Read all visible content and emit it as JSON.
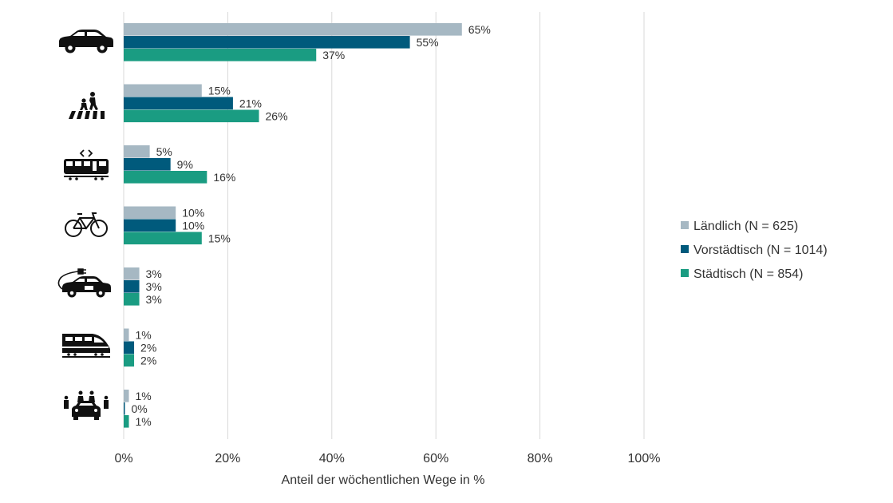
{
  "chart_data": {
    "type": "bar",
    "orientation": "horizontal",
    "categories": [
      "car-icon",
      "pedestrian-icon",
      "tram-icon",
      "bicycle-icon",
      "electric-car-icon",
      "train-icon",
      "carpool-icon"
    ],
    "series": [
      {
        "name": "Ländlich (N = 625)",
        "color": "#a6b8c3",
        "values": [
          65,
          15,
          5,
          10,
          3,
          1,
          1
        ]
      },
      {
        "name": "Vorstädtisch (N = 1014)",
        "color": "#005a7c",
        "values": [
          55,
          21,
          9,
          10,
          3,
          2,
          0
        ]
      },
      {
        "name": "Städtisch (N = 854)",
        "color": "#1a9c82",
        "values": [
          37,
          26,
          16,
          15,
          3,
          2,
          1
        ]
      }
    ],
    "xlabel": "Anteil der wöchentlichen Wege in %",
    "xlim": [
      0,
      100
    ],
    "xticks": [
      0,
      20,
      40,
      60,
      80,
      100
    ],
    "tick_suffix": "%",
    "grid": true,
    "legend_position": "right"
  }
}
